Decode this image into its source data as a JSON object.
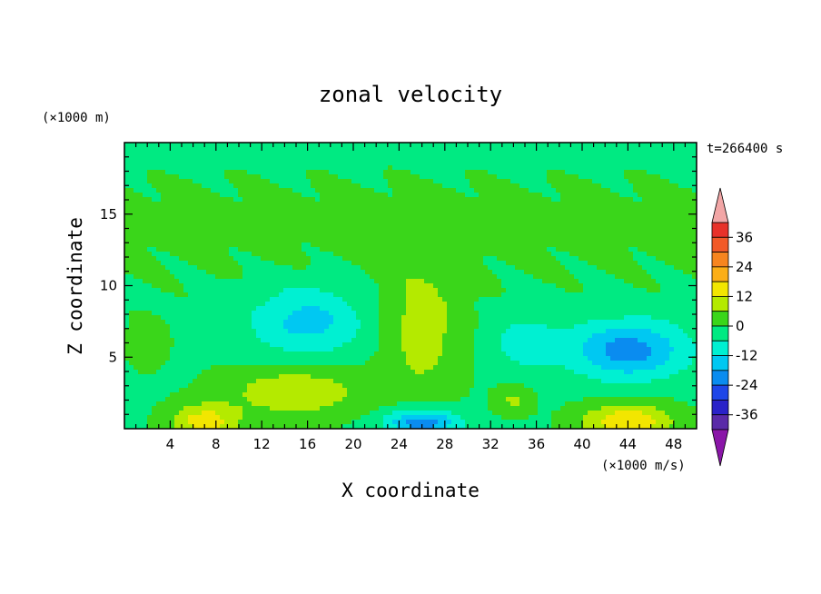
{
  "chart_data": {
    "type": "heatmap",
    "title": "zonal velocity",
    "xlabel": "X coordinate",
    "ylabel": "Z coordinate",
    "x_unit_label": "(×1000 m/s)",
    "y_unit_label": "(×1000 m)",
    "time_label": "t=266400 s",
    "xlim": [
      0,
      50
    ],
    "ylim": [
      0,
      20
    ],
    "x_ticks": [
      4,
      8,
      12,
      16,
      20,
      24,
      28,
      32,
      36,
      40,
      44,
      48
    ],
    "y_ticks": [
      5,
      10,
      15
    ],
    "colorbar": {
      "ticks": [
        36,
        24,
        12,
        0,
        -12,
        -24,
        -36
      ],
      "range": [
        -42,
        42
      ],
      "levels": [
        {
          "min": 36,
          "max": 42,
          "color": "#e8322a"
        },
        {
          "min": 30,
          "max": 36,
          "color": "#f25a28"
        },
        {
          "min": 24,
          "max": 30,
          "color": "#f7851f"
        },
        {
          "min": 18,
          "max": 24,
          "color": "#fbae17"
        },
        {
          "min": 12,
          "max": 18,
          "color": "#f2e600"
        },
        {
          "min": 6,
          "max": 12,
          "color": "#b4ea00"
        },
        {
          "min": 0,
          "max": 6,
          "color": "#3ad61a"
        },
        {
          "min": -6,
          "max": 0,
          "color": "#00ea82"
        },
        {
          "min": -12,
          "max": -6,
          "color": "#00f0d2"
        },
        {
          "min": -18,
          "max": -12,
          "color": "#00c8f2"
        },
        {
          "min": -24,
          "max": -18,
          "color": "#0a8cf0"
        },
        {
          "min": -30,
          "max": -24,
          "color": "#1e46e8"
        },
        {
          "min": -36,
          "max": -30,
          "color": "#2a22c8"
        },
        {
          "min": -42,
          "max": -36,
          "color": "#5a2aa8"
        }
      ],
      "over_color": "#f2a6a6",
      "under_color": "#8a16a8"
    },
    "grid": false,
    "field_features": [
      {
        "x": 26,
        "z": 0.4,
        "rx": 3.2,
        "rz": 1.0,
        "value": -22
      },
      {
        "x": 7,
        "z": 0.5,
        "rx": 3.0,
        "rz": 1.2,
        "value": 16
      },
      {
        "x": 44,
        "z": 0.5,
        "rx": 4.0,
        "rz": 1.3,
        "value": 18
      },
      {
        "x": 15,
        "z": 2.6,
        "rx": 6.0,
        "rz": 1.8,
        "value": 12
      },
      {
        "x": 34,
        "z": 2.0,
        "rx": 1.6,
        "rz": 1.0,
        "value": 8
      },
      {
        "x": 44,
        "z": 5.5,
        "rx": 5.0,
        "rz": 2.0,
        "value": -20
      },
      {
        "x": 16,
        "z": 7.5,
        "rx": 5.0,
        "rz": 2.5,
        "value": -13
      },
      {
        "x": 26,
        "z": 7.0,
        "rx": 3.5,
        "rz": 5.0,
        "value": 10
      },
      {
        "x": 35,
        "z": 6.0,
        "rx": 3.0,
        "rz": 2.0,
        "value": -8
      },
      {
        "x": 2,
        "z": 6.0,
        "rx": 1.5,
        "rz": 1.5,
        "value": 7
      }
    ]
  }
}
